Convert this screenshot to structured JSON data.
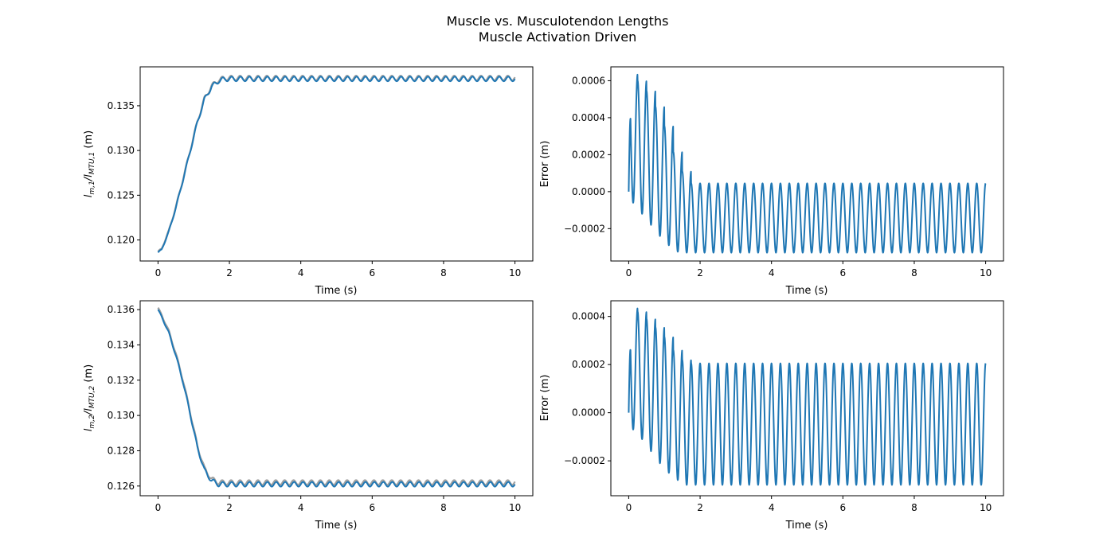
{
  "figure": {
    "title_line1": "Muscle vs. Musculotendon Lengths",
    "title_line2": "Muscle Activation Driven"
  },
  "colors": {
    "series_main": "#1f77b4",
    "series_ref": "#a0a0a0",
    "axes": "#000000"
  },
  "chart_data": [
    {
      "type": "line",
      "panel": "top-left",
      "xlabel": "Time (s)",
      "ylabel_main": "l",
      "ylabel_sub": "m,1",
      "ylabel_mid": "/l",
      "ylabel_sub2": "MTU,1",
      "ylabel_unit": " (m)",
      "xlim": [
        -0.5,
        10.5
      ],
      "ylim": [
        0.11765,
        0.13935
      ],
      "xticks": [
        0,
        2,
        4,
        6,
        8,
        10
      ],
      "yticks": [
        0.12,
        0.125,
        0.13,
        0.135
      ],
      "xtick_labels": [
        "0",
        "2",
        "4",
        "6",
        "8",
        "10"
      ],
      "ytick_labels": [
        "0.120",
        "0.125",
        "0.130",
        "0.135"
      ],
      "series": [
        {
          "style": "gray",
          "x": [
            0,
            0.1,
            0.3,
            0.5,
            0.7,
            0.9,
            1.1,
            1.3,
            1.5,
            1.7,
            1.9,
            2.0,
            10.0
          ],
          "y": [
            0.1187,
            0.119,
            0.121,
            0.1237,
            0.1268,
            0.13,
            0.1332,
            0.1358,
            0.1372,
            0.1379,
            0.1381,
            0.1381,
            0.1381
          ]
        },
        {
          "style": "main",
          "x": [
            0,
            0.1,
            0.3,
            0.5,
            0.7,
            0.9,
            1.1,
            1.3,
            1.5,
            1.7,
            1.9,
            2.0,
            10.0
          ],
          "y": [
            0.1186,
            0.1189,
            0.1209,
            0.1236,
            0.1267,
            0.1299,
            0.1331,
            0.1357,
            0.1371,
            0.1378,
            0.138,
            0.138,
            0.138
          ]
        }
      ]
    },
    {
      "type": "line",
      "panel": "top-right",
      "xlabel": "Time (s)",
      "ylabel": "Error (m)",
      "xlim": [
        -0.5,
        10.5
      ],
      "ylim": [
        -0.000375,
        0.000675
      ],
      "xticks": [
        0,
        2,
        4,
        6,
        8,
        10
      ],
      "yticks": [
        -0.0002,
        0.0,
        0.0002,
        0.0004,
        0.0006
      ],
      "xtick_labels": [
        "0",
        "2",
        "4",
        "6",
        "8",
        "10"
      ],
      "ytick_labels": [
        "−0.0002",
        "0.0000",
        "0.0002",
        "0.0004",
        "0.0006"
      ],
      "series": [
        {
          "style": "main",
          "peaks": [
            0.000635,
            0.0006,
            0.000545,
            0.00046,
            0.000355,
            0.000215,
            0.00011,
            4.5e-05
          ],
          "troughs": [
            -6e-05,
            -0.00012,
            -0.00018,
            -0.00024,
            -0.00029,
            -0.000325
          ],
          "steady_peak": 4.5e-05,
          "steady_trough": -0.00033,
          "period": 0.25
        }
      ]
    },
    {
      "type": "line",
      "panel": "bottom-left",
      "xlabel": "Time (s)",
      "ylabel_main": "l",
      "ylabel_sub": "m,2",
      "ylabel_mid": "/l",
      "ylabel_sub2": "MTU,2",
      "ylabel_unit": " (m)",
      "xlim": [
        -0.5,
        10.5
      ],
      "ylim": [
        0.12545,
        0.1365
      ],
      "xticks": [
        0,
        2,
        4,
        6,
        8,
        10
      ],
      "yticks": [
        0.126,
        0.128,
        0.13,
        0.132,
        0.134,
        0.136
      ],
      "xtick_labels": [
        "0",
        "2",
        "4",
        "6",
        "8",
        "10"
      ],
      "ytick_labels": [
        "0.126",
        "0.128",
        "0.130",
        "0.132",
        "0.134",
        "0.136"
      ],
      "series": [
        {
          "style": "gray",
          "x": [
            0,
            0.1,
            0.3,
            0.5,
            0.7,
            0.9,
            1.1,
            1.3,
            1.5,
            1.7,
            1.9,
            2.0,
            10.0
          ],
          "y": [
            0.1361,
            0.1357,
            0.1348,
            0.1335,
            0.132,
            0.1302,
            0.1283,
            0.127,
            0.1264,
            0.1262,
            0.1262,
            0.1262,
            0.1262
          ]
        },
        {
          "style": "main",
          "x": [
            0,
            0.1,
            0.3,
            0.5,
            0.7,
            0.9,
            1.1,
            1.3,
            1.5,
            1.7,
            1.9,
            2.0,
            10.0
          ],
          "y": [
            0.136,
            0.1356,
            0.1347,
            0.1334,
            0.1319,
            0.1301,
            0.1282,
            0.1269,
            0.1263,
            0.1261,
            0.1261,
            0.1261,
            0.1261
          ]
        }
      ]
    },
    {
      "type": "line",
      "panel": "bottom-right",
      "xlabel": "Time (s)",
      "ylabel": "Error (m)",
      "xlim": [
        -0.5,
        10.5
      ],
      "ylim": [
        -0.000345,
        0.000465
      ],
      "xticks": [
        0,
        2,
        4,
        6,
        8,
        10
      ],
      "yticks": [
        -0.0002,
        0.0,
        0.0002,
        0.0004
      ],
      "xtick_labels": [
        "0",
        "2",
        "4",
        "6",
        "8",
        "10"
      ],
      "ytick_labels": [
        "−0.0002",
        "0.0000",
        "0.0002",
        "0.0004"
      ],
      "series": [
        {
          "style": "main",
          "peaks": [
            0.000435,
            0.00042,
            0.00039,
            0.000355,
            0.000315,
            0.00026,
            0.00022,
            0.000205
          ],
          "troughs": [
            -7e-05,
            -0.00011,
            -0.00016,
            -0.00021,
            -0.00025,
            -0.00028
          ],
          "steady_peak": 0.000205,
          "steady_trough": -0.0003,
          "period": 0.25
        }
      ]
    }
  ]
}
